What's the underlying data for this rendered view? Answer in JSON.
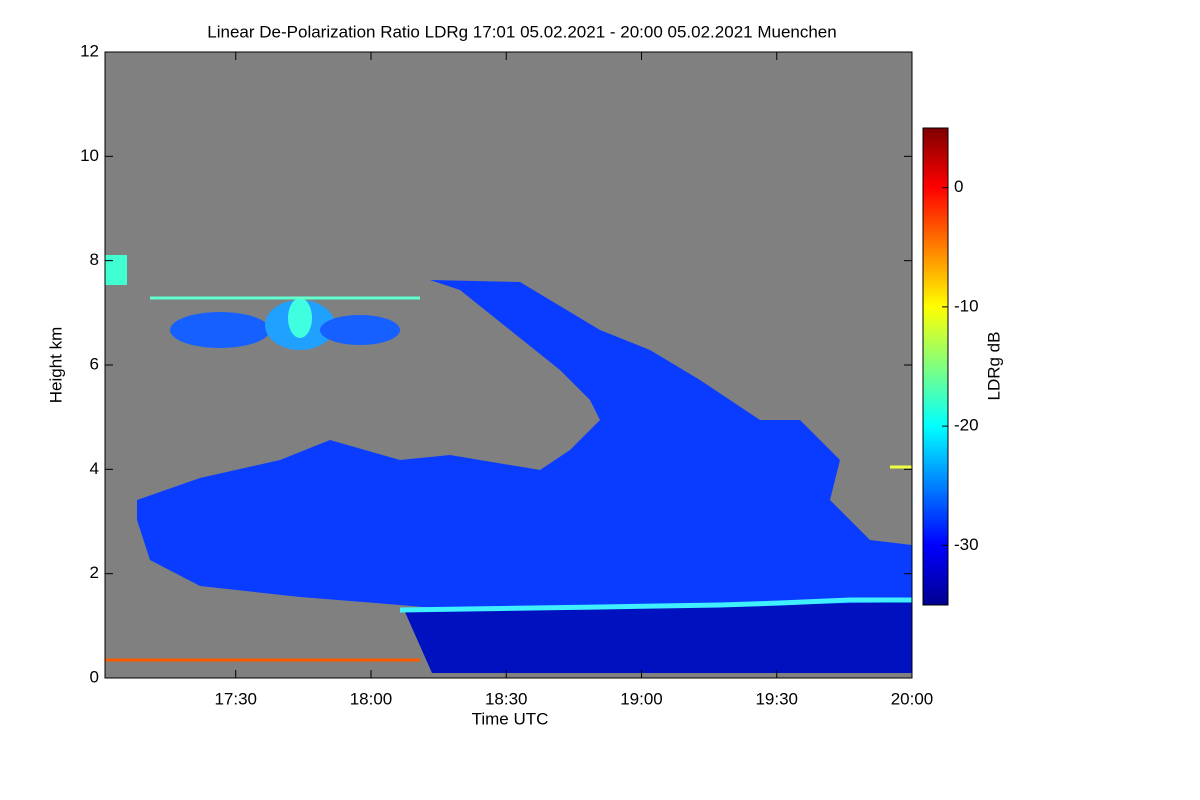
{
  "chart_data": {
    "type": "heatmap",
    "title": "Linear De-Polarization Ratio LDRg   17:01 05.02.2021 - 20:00 05.02.2021 Muenchen",
    "x_label": "Time UTC",
    "y_label": "Height km",
    "colorbar_label": "LDRg dB",
    "xlim": [
      1021,
      1200
    ],
    "xticks": [
      {
        "value": 1050,
        "label": "17:30"
      },
      {
        "value": 1080,
        "label": "18:00"
      },
      {
        "value": 1110,
        "label": "18:30"
      },
      {
        "value": 1140,
        "label": "19:00"
      },
      {
        "value": 1170,
        "label": "19:30"
      },
      {
        "value": 1200,
        "label": "20:00"
      }
    ],
    "ylim": [
      0,
      12
    ],
    "yticks": [
      0,
      2,
      4,
      6,
      8,
      10,
      12
    ],
    "clim": [
      -35,
      5
    ],
    "cticks": [
      0,
      -10,
      -20,
      -30
    ],
    "colormap": "jet"
  }
}
